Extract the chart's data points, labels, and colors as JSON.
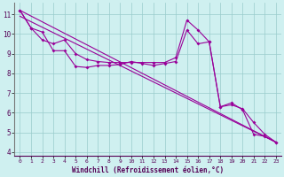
{
  "xlabel": "Windchill (Refroidissement éolien,°C)",
  "bg_color": "#cff0f0",
  "line_color": "#990099",
  "grid_color": "#99cccc",
  "xlim": [
    -0.5,
    23.5
  ],
  "ylim": [
    3.8,
    11.6
  ],
  "yticks": [
    4,
    5,
    6,
    7,
    8,
    9,
    10,
    11
  ],
  "xticks": [
    0,
    1,
    2,
    3,
    4,
    5,
    6,
    7,
    8,
    9,
    10,
    11,
    12,
    13,
    14,
    15,
    16,
    17,
    18,
    19,
    20,
    21,
    22,
    23
  ],
  "series": {
    "line1_x": [
      0,
      1,
      2,
      3,
      4,
      5,
      6,
      7,
      8,
      9,
      10,
      11,
      12,
      13,
      14,
      15,
      16,
      17,
      18,
      19,
      20,
      21,
      22,
      23
    ],
    "line1_y": [
      11.2,
      10.3,
      10.1,
      9.15,
      9.15,
      8.35,
      8.3,
      8.4,
      8.4,
      8.45,
      8.6,
      8.5,
      8.4,
      8.5,
      8.6,
      10.2,
      9.5,
      9.6,
      6.3,
      6.5,
      6.15,
      4.9,
      4.8,
      4.5
    ],
    "line2_x": [
      0,
      1,
      2,
      3,
      4,
      5,
      6,
      7,
      8,
      9,
      10,
      11,
      12,
      13,
      14,
      15,
      16,
      17,
      18,
      19,
      20,
      21,
      22,
      23
    ],
    "line2_y": [
      11.2,
      10.3,
      9.7,
      9.5,
      9.7,
      9.0,
      8.7,
      8.6,
      8.55,
      8.55,
      8.55,
      8.55,
      8.55,
      8.55,
      8.8,
      10.7,
      10.2,
      9.6,
      6.3,
      6.4,
      6.2,
      5.5,
      4.9,
      4.5
    ],
    "line3_x": [
      0,
      23
    ],
    "line3_y": [
      11.2,
      4.5
    ],
    "line4_x": [
      0,
      23
    ],
    "line4_y": [
      10.9,
      4.5
    ]
  }
}
